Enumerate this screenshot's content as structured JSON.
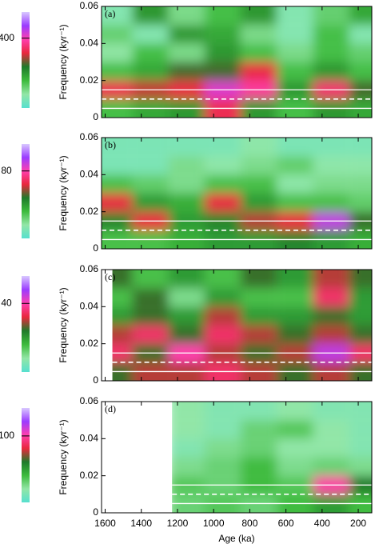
{
  "chart_data": [
    {
      "type": "heatmap",
      "label": "(a)",
      "ylabel": "Frequency (kyr⁻¹)",
      "xlim": [
        1620,
        125
      ],
      "data_xlim": [
        1620,
        125
      ],
      "ylim": [
        0,
        0.06
      ],
      "yticks": [
        0,
        0.02,
        0.04,
        0.06
      ],
      "xticks": [
        1600,
        1400,
        1200,
        1000,
        800,
        600,
        400,
        200
      ],
      "x": [
        1550,
        1350,
        1150,
        950,
        750,
        550,
        350,
        150
      ],
      "y": [
        0.005,
        0.015,
        0.025,
        0.035,
        0.045,
        0.055
      ],
      "values": [
        [
          150,
          180,
          200,
          330,
          200,
          150,
          200,
          180
        ],
        [
          330,
          300,
          320,
          420,
          380,
          200,
          350,
          250
        ],
        [
          150,
          180,
          250,
          250,
          320,
          150,
          200,
          150
        ],
        [
          80,
          150,
          100,
          200,
          150,
          100,
          150,
          120
        ],
        [
          120,
          60,
          200,
          180,
          100,
          60,
          150,
          60
        ],
        [
          60,
          200,
          100,
          150,
          200,
          60,
          120,
          180
        ]
      ],
      "reference_lines": [
        0.005,
        0.015
      ],
      "dashed_line": 0.01,
      "colorbar": {
        "clim": [
          0,
          550
        ],
        "ticks": [
          400
        ]
      },
      "colormap": [
        "#56e0cf",
        "#92e6a6",
        "#3dbb3d",
        "#1f7a2a",
        "#e8283c",
        "#ff3fae",
        "#9a3cff",
        "#d8c8ff"
      ]
    },
    {
      "type": "heatmap",
      "label": "(b)",
      "ylabel": "Frequency (kyr⁻¹)",
      "xlim": [
        1620,
        125
      ],
      "data_xlim": [
        1620,
        125
      ],
      "ylim": [
        0,
        0.06
      ],
      "yticks": [
        0,
        0.02,
        0.04,
        0.06
      ],
      "xticks": [
        1600,
        1400,
        1200,
        1000,
        800,
        600,
        400,
        200
      ],
      "x": [
        1550,
        1350,
        1150,
        950,
        750,
        550,
        350,
        150
      ],
      "y": [
        0.005,
        0.015,
        0.025,
        0.035,
        0.045,
        0.055
      ],
      "values": [
        [
          30,
          30,
          35,
          40,
          40,
          45,
          40,
          35
        ],
        [
          45,
          65,
          40,
          45,
          60,
          65,
          90,
          50
        ],
        [
          65,
          40,
          35,
          65,
          40,
          30,
          30,
          25
        ],
        [
          30,
          25,
          20,
          30,
          30,
          15,
          20,
          20
        ],
        [
          10,
          10,
          20,
          15,
          20,
          25,
          15,
          15
        ],
        [
          10,
          10,
          10,
          10,
          15,
          10,
          10,
          10
        ]
      ],
      "reference_lines": [
        0.005,
        0.015
      ],
      "dashed_line": 0.01,
      "colorbar": {
        "clim": [
          0,
          112
        ],
        "ticks": [
          80
        ]
      },
      "colormap": [
        "#56e0cf",
        "#92e6a6",
        "#3dbb3d",
        "#1f7a2a",
        "#e8283c",
        "#ff3fae",
        "#9a3cff",
        "#d8c8ff"
      ]
    },
    {
      "type": "heatmap",
      "label": "(c)",
      "ylabel": "Frequency (kyr⁻¹)",
      "xlim": [
        1620,
        125
      ],
      "data_xlim": [
        1560,
        125
      ],
      "ylim": [
        0,
        0.06
      ],
      "yticks": [
        0,
        0.02,
        0.04,
        0.06
      ],
      "xticks": [
        1600,
        1400,
        1200,
        1000,
        800,
        600,
        400,
        200
      ],
      "x": [
        1550,
        1350,
        1150,
        950,
        750,
        550,
        350,
        150
      ],
      "y": [
        0.005,
        0.015,
        0.025,
        0.035,
        0.045,
        0.055
      ],
      "values": [
        [
          25,
          30,
          30,
          35,
          30,
          25,
          30,
          25
        ],
        [
          35,
          25,
          40,
          30,
          25,
          30,
          45,
          35
        ],
        [
          30,
          35,
          25,
          35,
          30,
          25,
          30,
          25
        ],
        [
          20,
          25,
          20,
          30,
          20,
          20,
          25,
          20
        ],
        [
          15,
          25,
          10,
          20,
          15,
          15,
          35,
          20
        ],
        [
          25,
          15,
          20,
          15,
          25,
          20,
          30,
          25
        ]
      ],
      "reference_lines": [
        0.005,
        0.015
      ],
      "dashed_line": 0.01,
      "colorbar": {
        "clim": [
          0,
          56
        ],
        "ticks": [
          40
        ]
      },
      "colormap": [
        "#56e0cf",
        "#92e6a6",
        "#3dbb3d",
        "#1f7a2a",
        "#e8283c",
        "#ff3fae",
        "#9a3cff",
        "#d8c8ff"
      ]
    },
    {
      "type": "heatmap",
      "label": "(d)",
      "ylabel": "Frequency (kyr⁻¹)",
      "xlabel": "Age (ka)",
      "xlim": [
        1620,
        125
      ],
      "data_xlim": [
        1230,
        125
      ],
      "ylim": [
        0,
        0.06
      ],
      "yticks": [
        0,
        0.02,
        0.04,
        0.06
      ],
      "xticks": [
        1600,
        1400,
        1200,
        1000,
        800,
        600,
        400,
        200
      ],
      "x": [
        1550,
        1350,
        1150,
        950,
        750,
        550,
        350,
        150
      ],
      "y": [
        0.005,
        0.015,
        0.025,
        0.035,
        0.045,
        0.055
      ],
      "values": [
        [
          null,
          null,
          30,
          35,
          30,
          40,
          50,
          40
        ],
        [
          null,
          null,
          35,
          30,
          40,
          35,
          100,
          60
        ],
        [
          null,
          null,
          25,
          30,
          40,
          25,
          30,
          25
        ],
        [
          null,
          null,
          15,
          25,
          30,
          20,
          20,
          15
        ],
        [
          null,
          null,
          20,
          15,
          30,
          35,
          20,
          15
        ],
        [
          null,
          null,
          20,
          15,
          15,
          20,
          15,
          15
        ]
      ],
      "reference_lines": [
        0.005,
        0.015
      ],
      "dashed_line": 0.01,
      "colorbar": {
        "clim": [
          0,
          142
        ],
        "ticks": [
          100
        ]
      },
      "colormap": [
        "#56e0cf",
        "#92e6a6",
        "#3dbb3d",
        "#1f7a2a",
        "#e8283c",
        "#ff3fae",
        "#9a3cff",
        "#d8c8ff"
      ]
    }
  ]
}
